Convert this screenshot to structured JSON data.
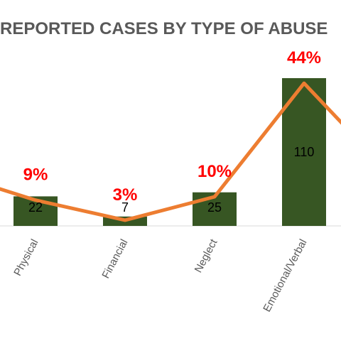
{
  "chart_data": {
    "type": "bar",
    "title": "REPORTED CASES BY TYPE OF ABUSE",
    "categories": [
      "Physical",
      "Financial",
      "Neglect",
      "Emotional/Verbal"
    ],
    "values": [
      22,
      7,
      25,
      110
    ],
    "value_labels": [
      "22",
      "7",
      "25",
      "110"
    ],
    "line_series": {
      "values": [
        9,
        3,
        10,
        44
      ],
      "labels": [
        "9%",
        "3%",
        "10%",
        "44%"
      ]
    },
    "colors": {
      "bar": "#375623",
      "line": "#ed7d31",
      "pct_label": "#ff0000",
      "text": "#595959"
    }
  }
}
